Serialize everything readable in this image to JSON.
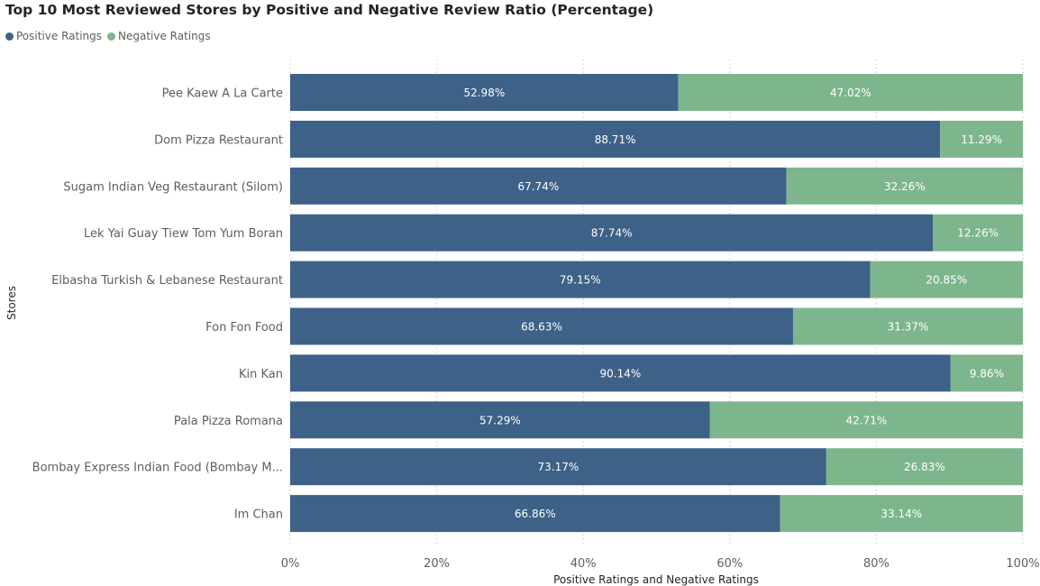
{
  "chart_data": {
    "type": "bar",
    "orientation": "horizontal",
    "stacked": true,
    "title": "Top 10 Most Reviewed Stores by Positive and Negative Review Ratio (Percentage)",
    "xlabel": "Positive Ratings and Negative Ratings",
    "ylabel": "Stores",
    "xlim": [
      0,
      100
    ],
    "x_ticks": [
      "0%",
      "20%",
      "40%",
      "60%",
      "80%",
      "100%"
    ],
    "grid": "vertical-dotted",
    "legend_position": "top-left",
    "categories": [
      "Pee Kaew A La Carte",
      "Dom Pizza Restaurant",
      "Sugam Indian Veg Restaurant (Silom)",
      "Lek Yai Guay Tiew Tom Yum Boran",
      "Elbasha Turkish & Lebanese Restaurant",
      "Fon Fon Food",
      "Kin Kan",
      "Pala Pizza Romana",
      "Bombay Express Indian Food (Bombay M...",
      "Im Chan"
    ],
    "series": [
      {
        "name": "Positive Ratings",
        "color": "#3e6188",
        "values": [
          52.98,
          88.71,
          67.74,
          87.74,
          79.15,
          68.63,
          90.14,
          57.29,
          73.17,
          66.86
        ],
        "labels": [
          "52.98%",
          "88.71%",
          "67.74%",
          "87.74%",
          "79.15%",
          "68.63%",
          "90.14%",
          "57.29%",
          "73.17%",
          "66.86%"
        ]
      },
      {
        "name": "Negative Ratings",
        "color": "#7db68c",
        "values": [
          47.02,
          11.29,
          32.26,
          12.26,
          20.85,
          31.37,
          9.86,
          42.71,
          26.83,
          33.14
        ],
        "labels": [
          "47.02%",
          "11.29%",
          "32.26%",
          "12.26%",
          "20.85%",
          "31.37%",
          "9.86%",
          "42.71%",
          "26.83%",
          "33.14%"
        ]
      }
    ]
  }
}
